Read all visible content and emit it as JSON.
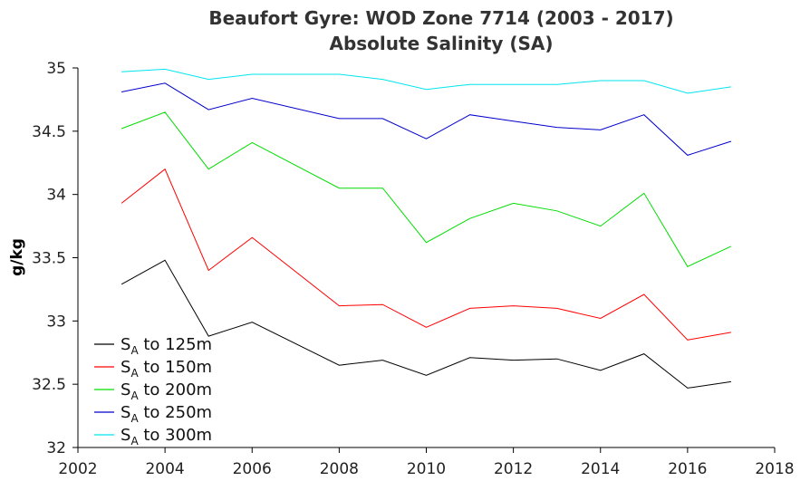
{
  "chart_data": {
    "type": "line",
    "title": "Beaufort Gyre: WOD Zone 7714 (2003 - 2017)",
    "subtitle": "Absolute Salinity (SA)",
    "xlabel": "",
    "ylabel": "g/kg",
    "xlim": [
      2002,
      2018
    ],
    "ylim": [
      32,
      35
    ],
    "xticks": [
      "2002",
      "2004",
      "2006",
      "2008",
      "2010",
      "2012",
      "2014",
      "2016",
      "2018"
    ],
    "yticks": [
      "32",
      "32.5",
      "33",
      "33.5",
      "34",
      "34.5",
      "35"
    ],
    "grid": false,
    "legend_position": "bottom-left",
    "x": [
      2003,
      2004,
      2005,
      2006,
      2008,
      2009,
      2010,
      2011,
      2012,
      2013,
      2014,
      2015,
      2016,
      2017
    ],
    "series": [
      {
        "name_main": "S",
        "name_sub": "A",
        "name_rest": " to 125m",
        "color": "#000000",
        "values": [
          33.29,
          33.48,
          32.88,
          32.99,
          32.65,
          32.69,
          32.57,
          32.71,
          32.69,
          32.7,
          32.61,
          32.74,
          32.47,
          32.52
        ]
      },
      {
        "name_main": "S",
        "name_sub": "A",
        "name_rest": " to 150m",
        "color": "#ff0000",
        "values": [
          33.93,
          34.2,
          33.4,
          33.66,
          33.12,
          33.13,
          32.95,
          33.1,
          33.12,
          33.1,
          33.02,
          33.21,
          32.85,
          32.91
        ]
      },
      {
        "name_main": "S",
        "name_sub": "A",
        "name_rest": " to 200m",
        "color": "#00dd00",
        "values": [
          34.52,
          34.65,
          34.2,
          34.41,
          34.05,
          34.05,
          33.62,
          33.81,
          33.93,
          33.87,
          33.75,
          34.01,
          33.43,
          33.59
        ]
      },
      {
        "name_main": "S",
        "name_sub": "A",
        "name_rest": " to 250m",
        "color": "#0000cc",
        "values": [
          34.81,
          34.88,
          34.67,
          34.76,
          34.6,
          34.6,
          34.44,
          34.63,
          34.58,
          34.53,
          34.51,
          34.63,
          34.31,
          34.42
        ]
      },
      {
        "name_main": "S",
        "name_sub": "A",
        "name_rest": " to 300m",
        "color": "#00e5ee",
        "values": [
          34.97,
          34.99,
          34.91,
          34.95,
          34.95,
          34.91,
          34.83,
          34.87,
          34.87,
          34.87,
          34.9,
          34.9,
          34.8,
          34.85
        ]
      }
    ]
  }
}
